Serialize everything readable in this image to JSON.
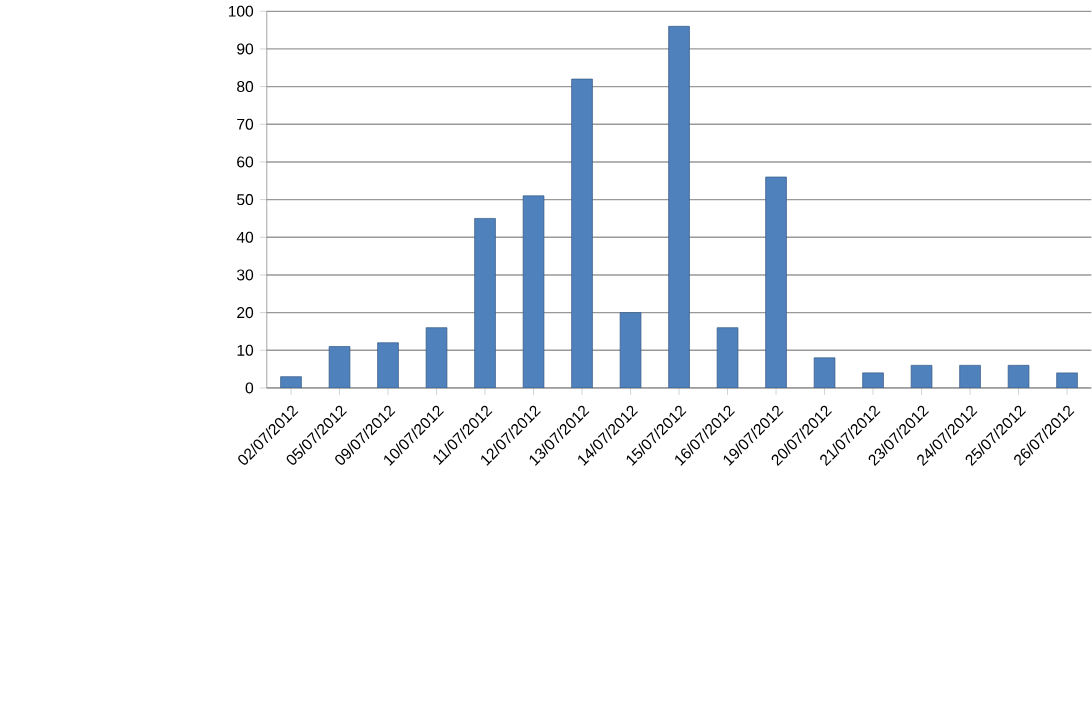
{
  "chart_data": {
    "type": "bar",
    "categories": [
      "02/07/2012",
      "05/07/2012",
      "09/07/2012",
      "10/07/2012",
      "11/07/2012",
      "12/07/2012",
      "13/07/2012",
      "14/07/2012",
      "15/07/2012",
      "16/07/2012",
      "19/07/2012",
      "20/07/2012",
      "21/07/2012",
      "23/07/2012",
      "24/07/2012",
      "25/07/2012",
      "26/07/2012"
    ],
    "values": [
      3,
      11,
      12,
      16,
      45,
      51,
      82,
      20,
      96,
      16,
      56,
      8,
      4,
      6,
      6,
      6,
      4
    ],
    "color": "#4f81bd",
    "ylim": [
      0,
      100
    ],
    "yticks": [
      0,
      10,
      20,
      30,
      40,
      50,
      60,
      70,
      80,
      90,
      100
    ],
    "grid": "y"
  }
}
